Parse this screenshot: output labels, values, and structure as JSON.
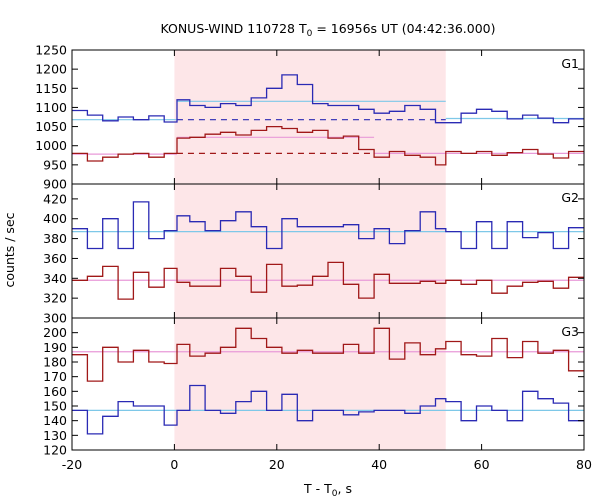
{
  "chart_data": {
    "type": "line",
    "title": "KONUS-WIND 110728 T",
    "title_sub": "0",
    "title_rest": " = 16956s UT (04:42:36.000)",
    "xlabel": "T - T",
    "xlabel_sub": "0",
    "xlabel_rest": ", s",
    "ylabel": "counts / sec",
    "xlim": [
      -20,
      80
    ],
    "x_ticks": [
      -20,
      0,
      20,
      40,
      60,
      80
    ],
    "highlight_interval": [
      0,
      53
    ],
    "colors": {
      "blue": "#2a2ab4",
      "red": "#a01818",
      "cyan": "#7ec8e8",
      "pink": "#e89ad8",
      "shade": "#fde6e8"
    },
    "bin_edges": [
      -20,
      -17,
      -14,
      -11,
      -8,
      -5,
      -2,
      0.5,
      3,
      6,
      9,
      12,
      15,
      18,
      21,
      24,
      27,
      30,
      33,
      36,
      39,
      42,
      45,
      48,
      51,
      53,
      56,
      59,
      62,
      65,
      68,
      71,
      74,
      77,
      80
    ],
    "panels": [
      {
        "label": "G1",
        "ylim": [
          900,
          1250
        ],
        "y_ticks": [
          900,
          950,
          1000,
          1050,
          1100,
          1150,
          1200,
          1250
        ],
        "series": [
          {
            "color_key": "blue",
            "values": [
              1092,
              1080,
              1065,
              1075,
              1068,
              1078,
              1062,
              1120,
              1105,
              1100,
              1110,
              1105,
              1125,
              1150,
              1185,
              1160,
              1110,
              1105,
              1105,
              1095,
              1085,
              1090,
              1105,
              1095,
              1060,
              1060,
              1085,
              1095,
              1090,
              1070,
              1080,
              1072,
              1060,
              1070
            ]
          },
          {
            "color_key": "red",
            "values": [
              980,
              960,
              970,
              978,
              980,
              970,
              980,
              1020,
              1022,
              1030,
              1035,
              1028,
              1040,
              1050,
              1045,
              1035,
              1040,
              1020,
              1025,
              990,
              970,
              985,
              975,
              970,
              950,
              985,
              980,
              985,
              975,
              982,
              990,
              978,
              968,
              985
            ]
          }
        ],
        "bg_lines": [
          {
            "color_key": "cyan",
            "x": [
              -20,
              0.5
            ],
            "y": 1068
          },
          {
            "color_key": "cyan",
            "x": [
              0.5,
              53
            ],
            "y": 1116
          },
          {
            "color_key": "cyan",
            "x": [
              53,
              80
            ],
            "y": 1071
          },
          {
            "color_key": "pink",
            "x": [
              -20,
              0.5
            ],
            "y": 978
          },
          {
            "color_key": "pink",
            "x": [
              0.5,
              39
            ],
            "y": 1022
          },
          {
            "color_key": "pink",
            "x": [
              39,
              80
            ],
            "y": 980
          }
        ],
        "dashed_lines": [
          {
            "color_key": "blue",
            "x": [
              0.5,
              53
            ],
            "y": 1068
          },
          {
            "color_key": "red",
            "x": [
              0.5,
              39
            ],
            "y": 980
          }
        ]
      },
      {
        "label": "G2",
        "ylim": [
          300,
          435
        ],
        "y_ticks": [
          300,
          320,
          340,
          360,
          380,
          400,
          420
        ],
        "series": [
          {
            "color_key": "blue",
            "values": [
              390,
              370,
              400,
              370,
              417,
              380,
              388,
              403,
              397,
              388,
              398,
              407,
              392,
              370,
              400,
              392,
              392,
              392,
              394,
              380,
              390,
              375,
              388,
              407,
              390,
              387,
              370,
              397,
              370,
              397,
              381,
              386,
              370,
              391
            ]
          },
          {
            "color_key": "red",
            "values": [
              338,
              342,
              352,
              319,
              346,
              331,
              350,
              336,
              332,
              332,
              350,
              342,
              326,
              354,
              332,
              333,
              342,
              356,
              334,
              320,
              344,
              335,
              335,
              337,
              335,
              338,
              334,
              338,
              325,
              332,
              336,
              337,
              330,
              341
            ]
          }
        ],
        "bg_lines": [
          {
            "color_key": "cyan",
            "x": [
              -20,
              80
            ],
            "y": 387
          },
          {
            "color_key": "pink",
            "x": [
              -20,
              80
            ],
            "y": 338
          }
        ],
        "dashed_lines": []
      },
      {
        "label": "G3",
        "ylim": [
          120,
          210
        ],
        "y_ticks": [
          120,
          130,
          140,
          150,
          160,
          170,
          180,
          190,
          200
        ],
        "series": [
          {
            "color_key": "blue",
            "values": [
              147,
              131,
              143,
              153,
              150,
              150,
              137,
              147,
              164,
              147,
              145,
              153,
              160,
              147,
              158,
              140,
              147,
              147,
              144,
              146,
              147,
              147,
              145,
              150,
              155,
              153,
              140,
              150,
              147,
              140,
              160,
              155,
              152,
              140
            ]
          },
          {
            "color_key": "red",
            "values": [
              185,
              167,
              190,
              180,
              188,
              180,
              179,
              192,
              184,
              186,
              190,
              203,
              196,
              190,
              186,
              188,
              186,
              186,
              192,
              186,
              203,
              182,
              193,
              185,
              189,
              194,
              185,
              184,
              196,
              183,
              194,
              186,
              188,
              174
            ]
          }
        ],
        "bg_lines": [
          {
            "color_key": "cyan",
            "x": [
              -20,
              80
            ],
            "y": 147
          },
          {
            "color_key": "pink",
            "x": [
              -20,
              80
            ],
            "y": 187
          }
        ],
        "dashed_lines": []
      }
    ]
  }
}
